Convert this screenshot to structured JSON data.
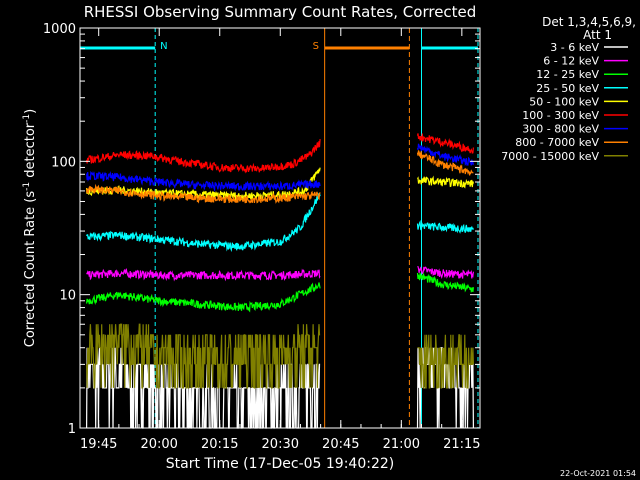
{
  "chart_data": {
    "type": "line",
    "title": "RHESSI Observing Summary Count Rates, Corrected",
    "xlabel": "Start Time (17-Dec-05 19:40:22)",
    "ylabel": "Corrected Count Rate (s⁻¹ detector⁻¹)",
    "ylabel_main": "Corrected Count Rate (s",
    "ylabel_sup1": "-1",
    "ylabel_mid": " detector",
    "ylabel_sup2": "-1",
    "ylabel_end": ")",
    "y_scale": "log",
    "ylim": [
      1,
      1000
    ],
    "xlim": [
      "19:40:22",
      "21:19:30"
    ],
    "x_ticks": [
      "19:45",
      "20:00",
      "20:15",
      "20:30",
      "20:45",
      "21:00",
      "21:15"
    ],
    "y_ticks": [
      "1",
      "10",
      "100",
      "1000"
    ],
    "legend_header": [
      "Det 1,3,4,5,6,9,",
      "Att 1"
    ],
    "footer_date": "22-Oct-2021 01:54",
    "grid": false,
    "legend_position": "right",
    "annotations": [
      {
        "label": "N",
        "type": "night",
        "from": "19:40:22",
        "to": "19:59:00",
        "color": "#00ffff"
      },
      {
        "label": "S",
        "type": "saa",
        "from": "20:41:00",
        "to": "21:02:00",
        "color": "#ff8000"
      },
      {
        "label": "",
        "type": "night",
        "from": "21:05:00",
        "to": "21:19:00",
        "color": "#00ffff"
      }
    ],
    "series": [
      {
        "name": "3 - 6 keV",
        "color": "#ffffff",
        "x": [
          "19:42",
          "19:50",
          "20:00",
          "20:10",
          "20:20",
          "20:30",
          "20:40",
          "21:04",
          "21:10",
          "21:18"
        ],
        "y": [
          2.2,
          2.4,
          1.8,
          1.5,
          1.5,
          1.6,
          2.2,
          2.3,
          2.4,
          2.2
        ]
      },
      {
        "name": "6 - 12 keV",
        "color": "#ff00ff",
        "x": [
          "19:42",
          "19:50",
          "20:00",
          "20:10",
          "20:20",
          "20:30",
          "20:40",
          "21:04",
          "21:10",
          "21:18"
        ],
        "y": [
          14,
          14.5,
          14,
          14,
          14,
          14,
          14.5,
          15.5,
          14.5,
          14
        ]
      },
      {
        "name": "12 - 25 keV",
        "color": "#00ff00",
        "x": [
          "19:42",
          "19:50",
          "20:00",
          "20:10",
          "20:20",
          "20:30",
          "20:40",
          "21:04",
          "21:10",
          "21:18"
        ],
        "y": [
          9,
          10,
          9,
          8.5,
          8,
          8.5,
          12,
          14,
          12,
          11
        ]
      },
      {
        "name": "25 - 50 keV",
        "color": "#00ffff",
        "x": [
          "19:42",
          "19:50",
          "20:00",
          "20:10",
          "20:20",
          "20:30",
          "20:35",
          "20:40",
          "21:04",
          "21:10",
          "21:18"
        ],
        "y": [
          27,
          28,
          26,
          24,
          23,
          25,
          32,
          58,
          33,
          32,
          31
        ]
      },
      {
        "name": "50 - 100 keV",
        "color": "#ffff00",
        "x": [
          "19:42",
          "19:50",
          "20:00",
          "20:10",
          "20:20",
          "20:30",
          "20:36",
          "20:40",
          "21:04",
          "21:10",
          "21:18"
        ],
        "y": [
          60,
          61,
          58,
          56,
          55,
          56,
          60,
          90,
          72,
          70,
          68
        ]
      },
      {
        "name": "100 - 300 keV",
        "color": "#ff0000",
        "x": [
          "19:42",
          "19:50",
          "19:58",
          "20:05",
          "20:15",
          "20:25",
          "20:33",
          "20:37",
          "20:40",
          "21:04",
          "21:10",
          "21:18"
        ],
        "y": [
          102,
          112,
          110,
          100,
          90,
          88,
          95,
          110,
          140,
          155,
          140,
          122
        ]
      },
      {
        "name": "300 - 800 keV",
        "color": "#0000ff",
        "x": [
          "19:42",
          "19:50",
          "20:00",
          "20:10",
          "20:20",
          "20:30",
          "20:40",
          "21:04",
          "21:10",
          "21:18"
        ],
        "y": [
          78,
          76,
          70,
          66,
          65,
          65,
          68,
          130,
          110,
          97
        ]
      },
      {
        "name": "800 - 7000 keV",
        "color": "#ff8000",
        "x": [
          "19:42",
          "19:50",
          "20:00",
          "20:10",
          "20:20",
          "20:30",
          "20:40",
          "21:04",
          "21:10",
          "21:18"
        ],
        "y": [
          62,
          60,
          55,
          53,
          52,
          53,
          56,
          115,
          95,
          82
        ]
      },
      {
        "name": "7000 - 15000 keV",
        "color": "#808000",
        "x": [
          "19:42",
          "19:50",
          "20:00",
          "20:10",
          "20:20",
          "20:30",
          "20:40",
          "21:04",
          "21:10",
          "21:18"
        ],
        "y": [
          3.2,
          4.2,
          3.2,
          3.0,
          3.2,
          3.3,
          3.6,
          3.0,
          3.1,
          3.0
        ]
      }
    ]
  }
}
